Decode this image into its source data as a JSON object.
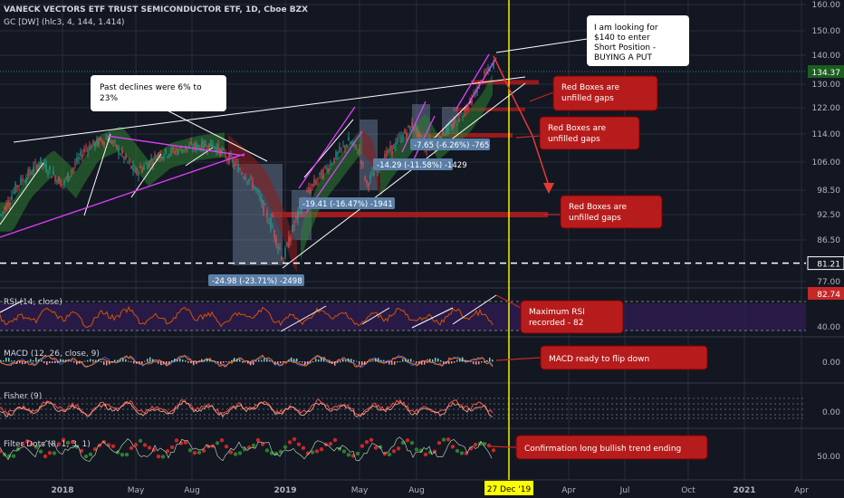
{
  "header": {
    "title": "VANECK VECTORS ETF TRUST SEMICONDUCTOR ETF, 1D, Cboe BZX",
    "indicator": "GC [DW] (hlc3, 4, 144, 1.414)"
  },
  "colors": {
    "background": "#131722",
    "grid": "#2a2e39",
    "candle_up": "#26a69a",
    "candle_down": "#ef5350",
    "magenta": "#e040fb",
    "yellow": "#ffff00",
    "callout_red": "#b71c1c",
    "price_green": "#1b5e20",
    "measure_blue": "#5b7fa6"
  },
  "chart_data": [
    {
      "type": "candlestick",
      "name": "price",
      "y_axis_ticks": [
        "160.00",
        "150.00",
        "140.00",
        "130.00",
        "122.00",
        "114.00",
        "106.00",
        "98.50",
        "92.50",
        "86.50",
        "77.00"
      ],
      "x_axis_ticks": [
        "2018",
        "May",
        "Aug",
        "2019",
        "May",
        "Aug",
        "27 Dec '19",
        "Apr",
        "Jul",
        "Oct",
        "2021",
        "Apr"
      ],
      "last_price": "134.37",
      "support_level": "81.21",
      "highlight_date": "27 Dec '19",
      "measurements": [
        "-24.98 (-23.71%) -2498",
        "-19.41 (-16.47%) -1941",
        "-14.29 (-11.58%) -1429",
        "-7.65 (-6.26%) -765"
      ],
      "callouts": [
        "Past declines were 6% to 23%",
        "I am looking for $140 to enter Short Position - BUYING A PUT",
        "Red Boxes are unfilled gaps",
        "Red Boxes are unfilled gaps",
        "Red Boxes are unfilled gaps"
      ],
      "gap_levels": [
        130.5,
        113.5,
        92.5
      ]
    },
    {
      "type": "line",
      "name": "RSI (14, close)",
      "label": "RSI (14, close)",
      "y_axis_ticks": [
        "40.00"
      ],
      "last_value": "82.74",
      "callout": "Maximum RSI recorded - 82"
    },
    {
      "type": "line",
      "name": "MACD (12, 26, close, 9)",
      "label": "MACD (12, 26, close, 9)",
      "y_axis_ticks": [
        "0.00"
      ],
      "callout": "MACD ready to flip down"
    },
    {
      "type": "line",
      "name": "Fisher (9)",
      "label": "Fisher (9)",
      "y_axis_ticks": [
        "0.00"
      ]
    },
    {
      "type": "scatter",
      "name": "Filter Dots (8, 1, 3, 1)",
      "label": "Filter Dots (8, 1, 3, 1)",
      "y_axis_ticks": [
        "50.00"
      ],
      "callout": "Confirmation long bullish trend ending"
    }
  ]
}
